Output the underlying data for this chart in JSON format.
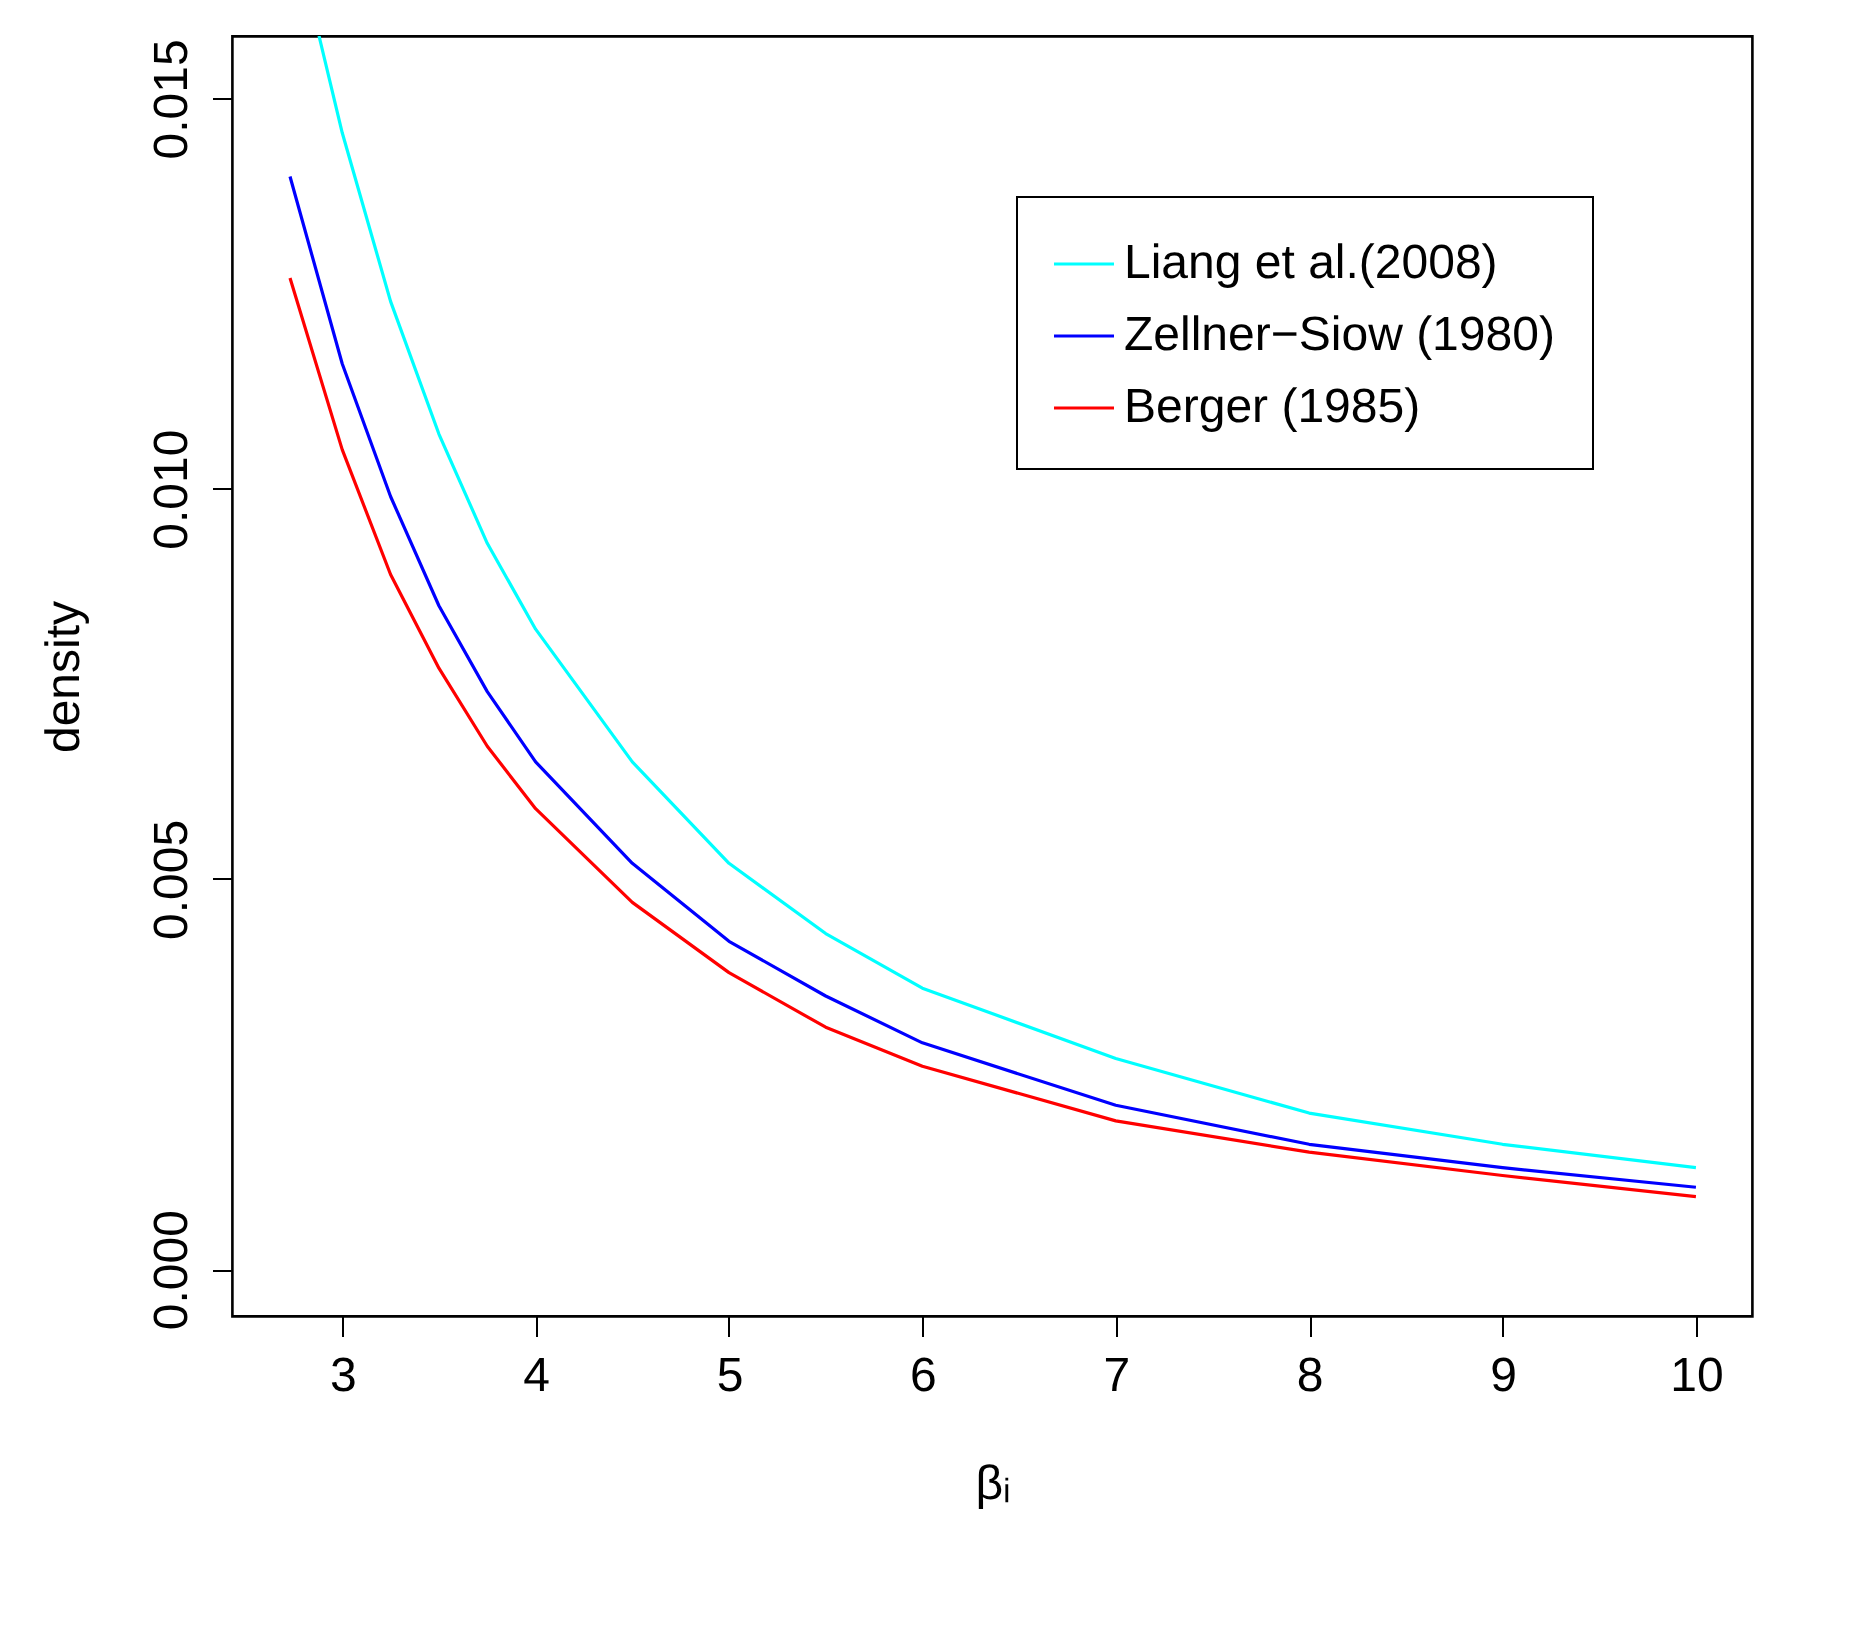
{
  "chart_data": {
    "type": "line",
    "xlabel": "βᵢ",
    "ylabel": "density",
    "xlim": [
      2.43,
      10.29
    ],
    "ylim": [
      -0.0006,
      0.0158
    ],
    "xticks": [
      3,
      4,
      5,
      6,
      7,
      8,
      9,
      10
    ],
    "yticks": [
      {
        "value": 0,
        "label": "0.000"
      },
      {
        "value": 0.005,
        "label": "0.005"
      },
      {
        "value": 0.01,
        "label": "0.010"
      },
      {
        "value": 0.015,
        "label": "0.015"
      }
    ],
    "grid": false,
    "legend": "top right",
    "series": [
      {
        "name": "Liang et al.(2008)",
        "color": "#00ffff",
        "x": [
          2.88,
          3,
          3.25,
          3.5,
          3.75,
          4,
          4.5,
          5,
          5.5,
          6,
          7,
          8,
          9,
          10
        ],
        "values": [
          0.0158,
          0.01456,
          0.0124,
          0.0107,
          0.0093,
          0.0082,
          0.0065,
          0.0052,
          0.0043,
          0.0036,
          0.0027,
          0.002,
          0.0016,
          0.0013
        ]
      },
      {
        "name": "Zellner−Siow (1980)",
        "color": "#0000ff",
        "x": [
          2.73,
          3,
          3.25,
          3.5,
          3.75,
          4,
          4.5,
          5,
          5.5,
          6,
          7,
          8,
          9,
          10
        ],
        "values": [
          0.014,
          0.0116,
          0.0099,
          0.0085,
          0.0074,
          0.0065,
          0.0052,
          0.0042,
          0.0035,
          0.0029,
          0.0021,
          0.0016,
          0.0013,
          0.00105
        ]
      },
      {
        "name": "Berger (1985)",
        "color": "#ff0000",
        "x": [
          2.73,
          3,
          3.25,
          3.5,
          3.75,
          4,
          4.5,
          5,
          5.5,
          6,
          7,
          8,
          9,
          10
        ],
        "values": [
          0.0127,
          0.0105,
          0.0089,
          0.0077,
          0.0067,
          0.0059,
          0.0047,
          0.0038,
          0.0031,
          0.0026,
          0.0019,
          0.0015,
          0.0012,
          0.00093
        ]
      }
    ]
  }
}
